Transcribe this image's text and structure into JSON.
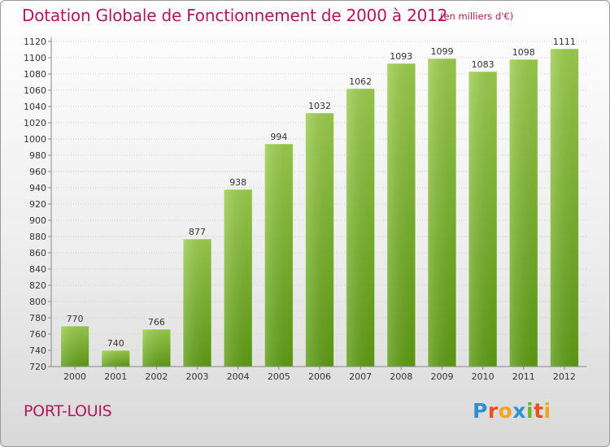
{
  "title": "Dotation Globale de Fonctionnement de 2000 à 2012",
  "subtitle": "(en milliers d'€)",
  "commune": "PORT-LOUIS",
  "logo": {
    "text": "Proxiti",
    "letters": [
      {
        "ch": "P",
        "color": "#2e8fd1"
      },
      {
        "ch": "r",
        "color": "#e8501c"
      },
      {
        "ch": "o",
        "color": "#f0a51c"
      },
      {
        "ch": "x",
        "color": "#2e8fd1"
      },
      {
        "ch": "i",
        "color": "#6cb42a"
      },
      {
        "ch": "t",
        "color": "#e8501c"
      },
      {
        "ch": "i",
        "color": "#f0a51c"
      }
    ]
  },
  "colors": {
    "accent": "#b0175c",
    "bar_top": "#9ccd4e",
    "bar_bottom": "#5e9c14"
  },
  "chart_data": {
    "type": "bar",
    "categories": [
      "2000",
      "2001",
      "2002",
      "2003",
      "2004",
      "2005",
      "2006",
      "2007",
      "2008",
      "2009",
      "2010",
      "2011",
      "2012"
    ],
    "values": [
      770,
      740,
      766,
      877,
      938,
      994,
      1032,
      1062,
      1093,
      1099,
      1083,
      1098,
      1111
    ],
    "ylim": [
      720,
      1120
    ],
    "yticks": [
      720,
      740,
      760,
      780,
      800,
      820,
      840,
      860,
      880,
      900,
      920,
      940,
      960,
      980,
      1000,
      1020,
      1040,
      1060,
      1080,
      1100,
      1120
    ],
    "grid": true
  }
}
